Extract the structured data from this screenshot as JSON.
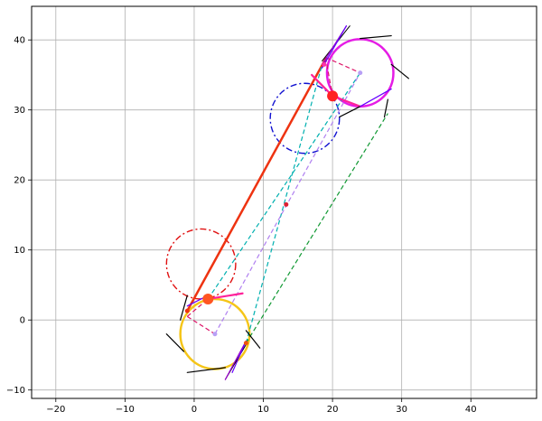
{
  "chart_data": {
    "type": "line",
    "title": "",
    "xlabel": "",
    "ylabel": "",
    "grid": true,
    "xlim": [
      -23.5,
      49.5
    ],
    "ylim": [
      -11.2,
      44.8
    ],
    "xticks": [
      -20,
      -10,
      0,
      10,
      20,
      30,
      40
    ],
    "yticks": [
      -10,
      0,
      10,
      20,
      30,
      40
    ],
    "xtick_labels": [
      "−20",
      "−10",
      "0",
      "10",
      "20",
      "30",
      "40"
    ],
    "ytick_labels": [
      "−10",
      "0",
      "10",
      "20",
      "30",
      "40"
    ],
    "circles": [
      {
        "cx": 1.0,
        "cy": 8.0,
        "r": 5.0,
        "color": "#e01010",
        "style": "dashdot",
        "width": 1.4
      },
      {
        "cx": 16.0,
        "cy": 28.8,
        "r": 5.0,
        "color": "#1010d0",
        "style": "dashdot",
        "width": 1.4
      },
      {
        "cx": 3.0,
        "cy": -2.0,
        "r": 5.0,
        "color": "#f5c518",
        "style": "solid",
        "width": 2.5
      },
      {
        "cx": 24.0,
        "cy": 35.3,
        "r": 4.8,
        "color": "#e51ce5",
        "style": "solid",
        "width": 2.5
      }
    ],
    "segments": [
      {
        "x": [
          -1.0,
          19.0
        ],
        "y": [
          1.3,
          37.3
        ],
        "color": "#ee3311",
        "style": "solid",
        "width": 2.5
      },
      {
        "x": [
          2.0,
          24.0
        ],
        "y": [
          3.0,
          35.3
        ],
        "color": "#00b0b0",
        "style": "dashed",
        "width": 1.2
      },
      {
        "x": [
          7.5,
          18.5
        ],
        "y": [
          -3.3,
          36.5
        ],
        "color": "#00b0b0",
        "style": "dashed",
        "width": 1.2
      },
      {
        "x": [
          7.5,
          28.0
        ],
        "y": [
          -3.3,
          29.5
        ],
        "color": "#119933",
        "style": "dashed",
        "width": 1.2
      },
      {
        "x": [
          3.0,
          24.0
        ],
        "y": [
          -2.0,
          35.3
        ],
        "color": "#b080f0",
        "style": "dashed",
        "width": 1.2
      },
      {
        "x": [
          -1.0,
          3.0
        ],
        "y": [
          0.5,
          -2.0
        ],
        "color": "#dd1166",
        "style": "dashed",
        "width": 1.2
      },
      {
        "x": [
          -1.0,
          2.0
        ],
        "y": [
          0.5,
          3.0
        ],
        "color": "#dd1166",
        "style": "dashed",
        "width": 1.2
      },
      {
        "x": [
          19.0,
          24.0
        ],
        "y": [
          37.5,
          35.3
        ],
        "color": "#dd1166",
        "style": "dashed",
        "width": 1.2
      },
      {
        "x": [
          19.0,
          20.0
        ],
        "y": [
          37.5,
          32.0
        ],
        "color": "#dd1166",
        "style": "dashed",
        "width": 1.2
      },
      {
        "x": [
          2.0,
          7.0
        ],
        "y": [
          3.0,
          3.8
        ],
        "color": "#ff2299",
        "style": "solid",
        "width": 2.2
      },
      {
        "x": [
          17.0,
          20.0
        ],
        "y": [
          35.0,
          32.0
        ],
        "color": "#ff2299",
        "style": "solid",
        "width": 2.2
      },
      {
        "x": [
          20.0,
          24.0
        ],
        "y": [
          32.0,
          30.5
        ],
        "color": "#ff2299",
        "style": "solid",
        "width": 2.2
      },
      {
        "x": [
          -4.0,
          -1.5
        ],
        "y": [
          -2.0,
          -4.5
        ],
        "color": "#000000",
        "style": "solid",
        "width": 1.2
      },
      {
        "x": [
          -1.0,
          4.5
        ],
        "y": [
          -7.5,
          -6.8
        ],
        "color": "#000000",
        "style": "solid",
        "width": 1.2
      },
      {
        "x": [
          -2.0,
          -1.0
        ],
        "y": [
          0.0,
          3.5
        ],
        "color": "#000000",
        "style": "solid",
        "width": 1.2
      },
      {
        "x": [
          7.5,
          9.5
        ],
        "y": [
          -1.5,
          -4.0
        ],
        "color": "#000000",
        "style": "solid",
        "width": 1.2
      },
      {
        "x": [
          24.0,
          28.5
        ],
        "y": [
          40.2,
          40.6
        ],
        "color": "#000000",
        "style": "solid",
        "width": 1.2
      },
      {
        "x": [
          28.5,
          31.0
        ],
        "y": [
          36.5,
          34.5
        ],
        "color": "#000000",
        "style": "solid",
        "width": 1.2
      },
      {
        "x": [
          21.0,
          24.0
        ],
        "y": [
          29.0,
          30.5
        ],
        "color": "#000000",
        "style": "solid",
        "width": 1.2
      },
      {
        "x": [
          27.5,
          28.0
        ],
        "y": [
          29.0,
          31.5
        ],
        "color": "#000000",
        "style": "solid",
        "width": 1.2
      },
      {
        "x": [
          18.5,
          22.5
        ],
        "y": [
          37.0,
          42.0
        ],
        "color": "#000000",
        "style": "solid",
        "width": 1.0
      },
      {
        "x": [
          4.5,
          7.5
        ],
        "y": [
          -8.5,
          -3.5
        ],
        "color": "#000000",
        "style": "solid",
        "width": 1.0
      },
      {
        "x": [
          18.5,
          22.0
        ],
        "y": [
          36.5,
          42.0
        ],
        "color": "#9900cc",
        "style": "solid",
        "width": 1.2
      },
      {
        "x": [
          4.5,
          7.5
        ],
        "y": [
          -8.5,
          -3.0
        ],
        "color": "#9900cc",
        "style": "solid",
        "width": 1.2
      },
      {
        "x": [
          -1.0,
          2.0
        ],
        "y": [
          2.0,
          3.5
        ],
        "color": "#6600ff",
        "style": "solid",
        "width": 1.2
      },
      {
        "x": [
          5.5,
          7.5
        ],
        "y": [
          -7.5,
          -3.0
        ],
        "color": "#6600ff",
        "style": "solid",
        "width": 1.2
      },
      {
        "x": [
          24.0,
          28.5
        ],
        "y": [
          30.5,
          33.0
        ],
        "color": "#6600ff",
        "style": "solid",
        "width": 1.2
      },
      {
        "x": [
          18.5,
          22.0
        ],
        "y": [
          36.0,
          42.0
        ],
        "color": "#6600ff",
        "style": "solid",
        "width": 1.2
      }
    ],
    "points": [
      {
        "x": 2.0,
        "y": 3.0,
        "r": 6.0,
        "color": "#ff5522"
      },
      {
        "x": 20.0,
        "y": 32.0,
        "r": 6.0,
        "color": "#ff2222"
      },
      {
        "x": 13.3,
        "y": 16.5,
        "r": 2.5,
        "color": "#dd2233"
      },
      {
        "x": -1.0,
        "y": 1.3,
        "r": 2.5,
        "color": "#ee3311"
      },
      {
        "x": 7.5,
        "y": -3.3,
        "r": 2.5,
        "color": "#ee5511"
      },
      {
        "x": 18.8,
        "y": 36.5,
        "r": 2.5,
        "color": "#ff33aa"
      },
      {
        "x": 3.0,
        "y": -2.0,
        "r": 2.5,
        "color": "#b8a0f5"
      },
      {
        "x": 24.0,
        "y": 35.3,
        "r": 2.5,
        "color": "#b8a0f5"
      }
    ]
  }
}
